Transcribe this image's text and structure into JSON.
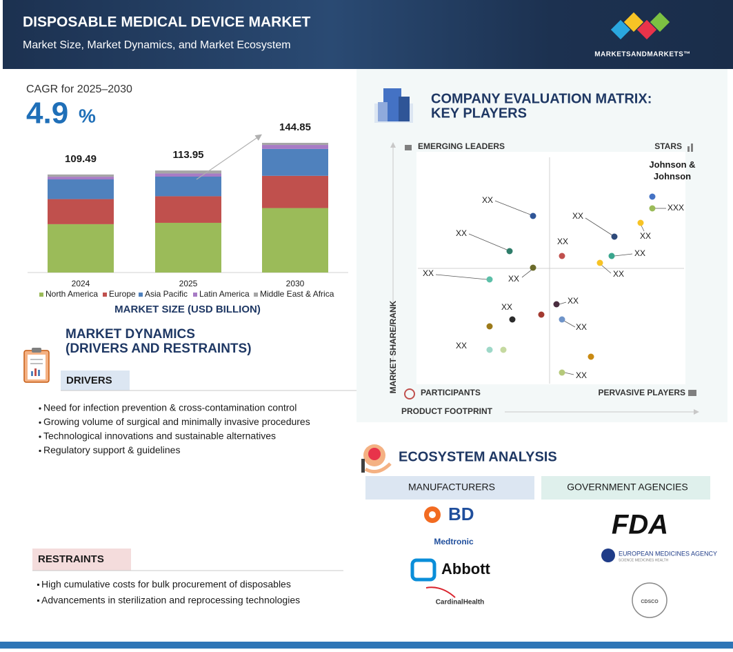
{
  "header": {
    "title": "DISPOSABLE MEDICAL DEVICE MARKET",
    "subtitle": "Market Size, Market Dynamics, and Market Ecosystem",
    "brand": "MARKETSANDMARKETS™"
  },
  "cagr": {
    "label": "CAGR for 2025–2030",
    "value": "4.9",
    "unit": "%"
  },
  "chart_data": {
    "type": "bar",
    "stacked": true,
    "x_label": "MARKET SIZE (USD BILLION)",
    "categories": [
      "2024",
      "2025",
      "2030"
    ],
    "totals": [
      109.49,
      113.95,
      144.85
    ],
    "series": [
      {
        "name": "North America",
        "color": "#9bbb59",
        "values": [
          54,
          55.5,
          72
        ]
      },
      {
        "name": "Europe",
        "color": "#c0504d",
        "values": [
          28,
          29.7,
          36
        ]
      },
      {
        "name": "Asia Pacific",
        "color": "#4f81bd",
        "values": [
          22,
          21.9,
          30
        ]
      },
      {
        "name": "Latin America",
        "color": "#a77bc5",
        "values": [
          3,
          3.5,
          4.5
        ]
      },
      {
        "name": "Middle East & Africa",
        "color": "#a6a6a6",
        "values": [
          2.49,
          3.35,
          2.35
        ]
      }
    ]
  },
  "dynamics": {
    "title_line1": "MARKET DYNAMICS",
    "title_line2": "(DRIVERS AND RESTRAINTS)",
    "drivers_title": "DRIVERS",
    "drivers": [
      "Need for infection prevention & cross-contamination control",
      "Growing volume of surgical and minimally invasive procedures",
      "Technological innovations and sustainable alternatives",
      "Regulatory support & guidelines"
    ],
    "restraints_title": "RESTRAINTS",
    "restraints": [
      "High cumulative costs for bulk procurement of disposables",
      "Advancements in sterilization and reprocessing technologies"
    ]
  },
  "matrix": {
    "title_line1": "COMPANY EVALUATION MATRIX:",
    "title_line2": "KEY PLAYERS",
    "quadrants": [
      "EMERGING LEADERS",
      "STARS",
      "PARTICIPANTS",
      "PERVASIVE PLAYERS"
    ],
    "y_label": "MARKET SHARE/RANK",
    "x_label": "PRODUCT FOOTPRINT",
    "companies": [
      "Johnson & Johnson",
      "XXX",
      "XX",
      "XX",
      "XX",
      "XX",
      "XX",
      "XX",
      "XX",
      "XX",
      "XX",
      "XX",
      "XX",
      "XX",
      "XX",
      "XX"
    ]
  },
  "ecosystem": {
    "title": "ECOSYSTEM ANALYSIS",
    "manufacturers_title": "MANUFACTURERS",
    "agencies_title": "GOVERNMENT AGENCIES",
    "manufacturers": [
      "BD",
      "Medtronic",
      "Abbott",
      "CardinalHealth"
    ],
    "agencies": [
      "FDA",
      "EUROPEAN MEDICINES AGENCY",
      "SCIENCE MEDICINES HEALTH",
      "CDSCO"
    ]
  }
}
